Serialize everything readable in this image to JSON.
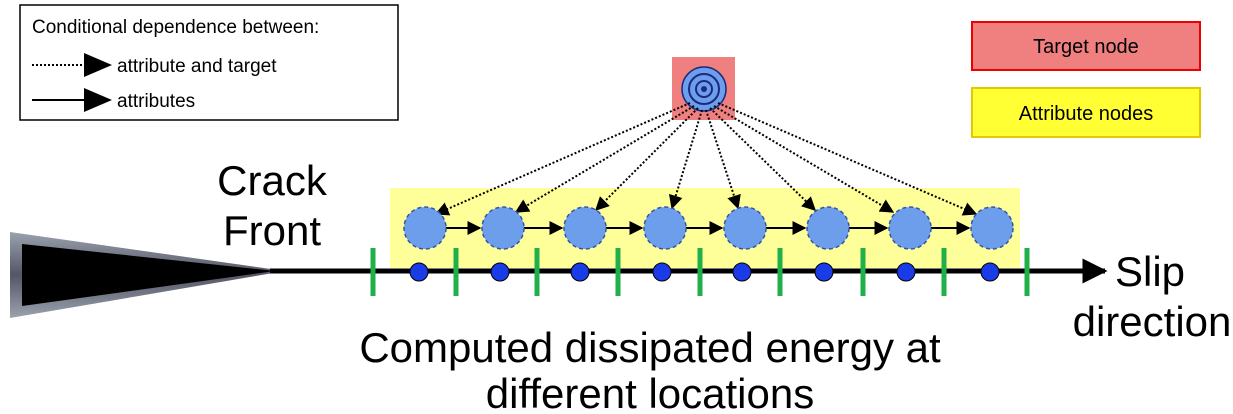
{
  "legend": {
    "title": "Conditional dependence between:",
    "items": [
      "attribute and target",
      "attributes"
    ]
  },
  "node_key": {
    "target": "Target node",
    "attribute": "Attribute nodes"
  },
  "labels": {
    "crack_front": [
      "Crack",
      "Front"
    ],
    "slip_direction": [
      "Slip",
      "direction"
    ]
  },
  "caption": [
    "Computed dissipated energy at",
    "different locations"
  ]
}
